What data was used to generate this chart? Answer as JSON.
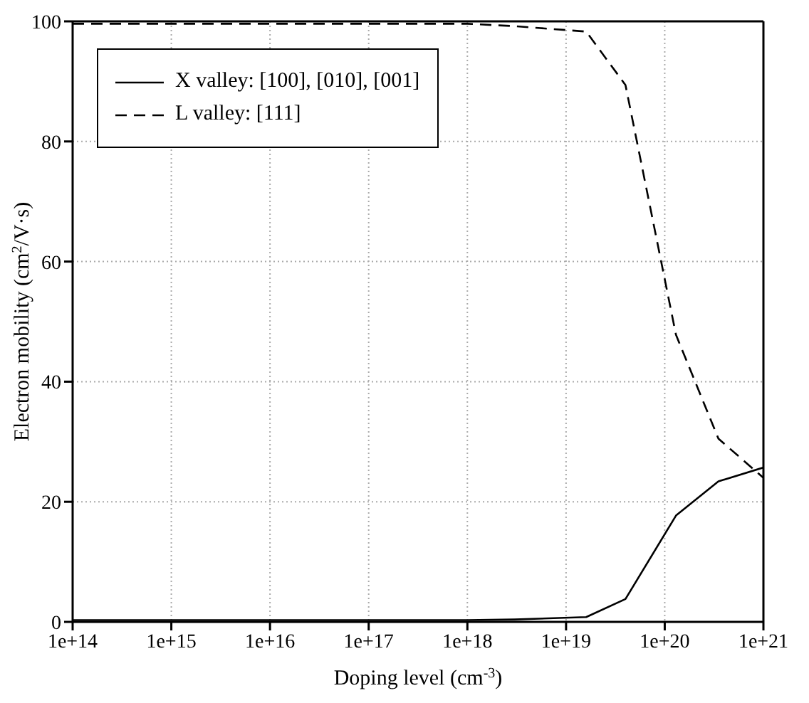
{
  "chart_data": {
    "type": "line",
    "xlabel": "Doping level (cm$^{-3}$)",
    "ylabel": "Electron mobility (cm$^{2}$/V·s)",
    "log": "x",
    "grid": true,
    "legend": "top left",
    "marker": "none",
    "x": [
      100000000000000.0,
      1000000000000000.0,
      1e+16,
      1e+17,
      1e+18,
      3e+18,
      1.6e+19,
      4e+19,
      1.3e+20,
      3.5e+20,
      1e+21
    ],
    "xlim": [
      100000000000000.0,
      1e+21
    ],
    "xticks": [
      {
        "value": 100000000000000.0,
        "label": "1e+14"
      },
      {
        "value": 1000000000000000.0,
        "label": "1e+15"
      },
      {
        "value": 1e+16,
        "label": "1e+16"
      },
      {
        "value": 1e+17,
        "label": "1e+17"
      },
      {
        "value": 1e+18,
        "label": "1e+18"
      },
      {
        "value": 1e+19,
        "label": "1e+19"
      },
      {
        "value": 1e+20,
        "label": "1e+20"
      },
      {
        "value": 1e+21,
        "label": "1e+21"
      }
    ],
    "ylim": [
      0,
      100
    ],
    "yticks": [
      0,
      20,
      40,
      60,
      80,
      100
    ],
    "series": [
      {
        "name": "X valley: [100], [010], [001]",
        "color": "#000000",
        "line_style": "solid",
        "values": [
          0.3,
          0.3,
          0.3,
          0.3,
          0.3,
          0.4,
          0.8,
          3.8,
          17.7,
          23.4,
          25.7
        ]
      },
      {
        "name": "L valley: [111]",
        "color": "#000000",
        "line_style": "dashed",
        "values": [
          99.6,
          99.6,
          99.6,
          99.6,
          99.6,
          99.2,
          98.3,
          89.4,
          47.8,
          30.5,
          24
        ]
      }
    ]
  }
}
